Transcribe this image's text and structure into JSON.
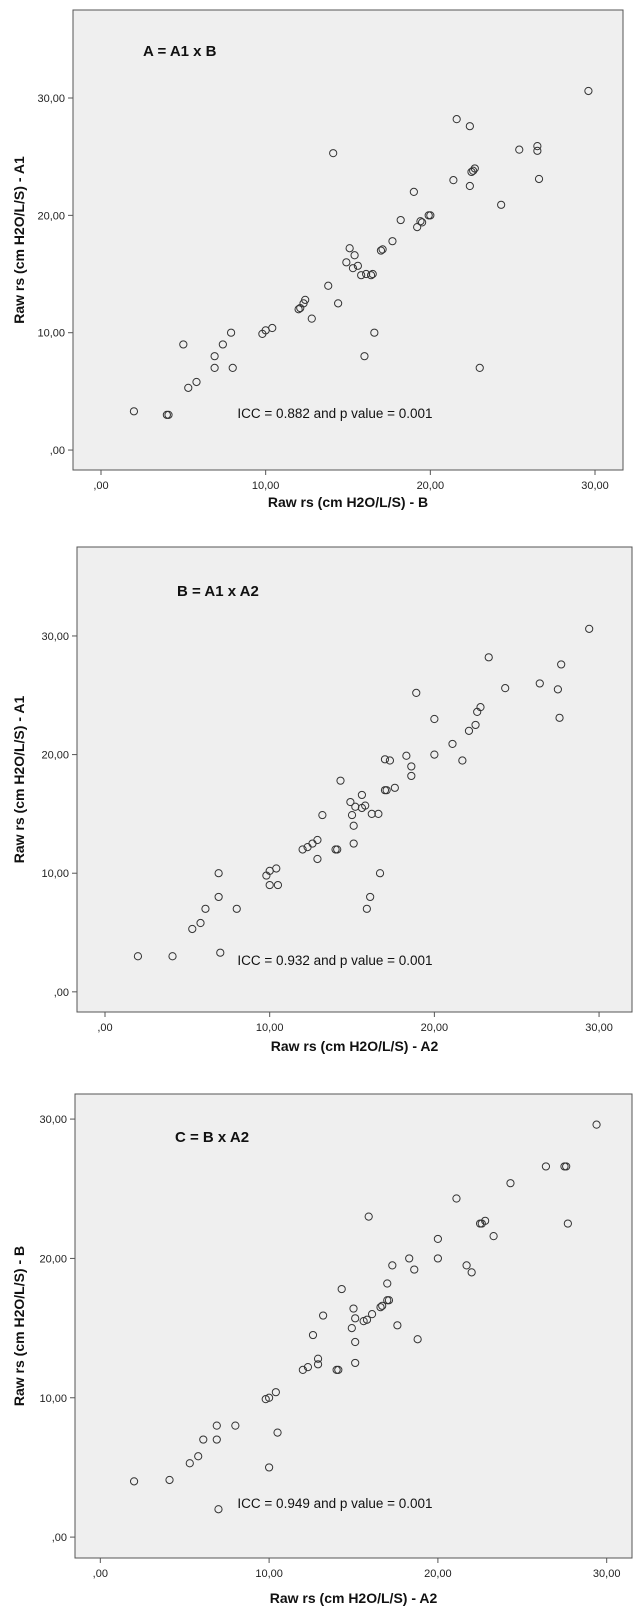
{
  "chart_data": [
    {
      "type": "scatter",
      "title": "A = A1 x B",
      "annotation": "ICC = 0.882 and p value = 0.001",
      "xlabel": "Raw rs (cm H2O/L/S) - B",
      "ylabel": "Raw rs (cm H2O/L/S) - A1",
      "xlim": [
        -1.7,
        31.7
      ],
      "ylim": [
        -1.7,
        37.5
      ],
      "xticks": [
        0,
        10,
        20,
        30
      ],
      "yticks": [
        0,
        10,
        20,
        30
      ],
      "xtick_labels": [
        ",00",
        "10,00",
        "20,00",
        "30,00"
      ],
      "ytick_labels": [
        ",00",
        "10,00",
        "20,00",
        "30,00"
      ],
      "grid": false,
      "points": [
        [
          2,
          3.3
        ],
        [
          4,
          3
        ],
        [
          4.1,
          3
        ],
        [
          5,
          9
        ],
        [
          5.3,
          5.3
        ],
        [
          5.8,
          5.8
        ],
        [
          6.9,
          7
        ],
        [
          6.9,
          8
        ],
        [
          7.4,
          9
        ],
        [
          7.9,
          10
        ],
        [
          8,
          7
        ],
        [
          9.8,
          9.9
        ],
        [
          10,
          10.2
        ],
        [
          10.4,
          10.4
        ],
        [
          12,
          12
        ],
        [
          12.1,
          12.1
        ],
        [
          12.3,
          12.5
        ],
        [
          12.4,
          12.8
        ],
        [
          12.8,
          11.2
        ],
        [
          13.8,
          14
        ],
        [
          14.1,
          25.3
        ],
        [
          14.4,
          12.5
        ],
        [
          14.9,
          16
        ],
        [
          15.1,
          17.2
        ],
        [
          15.3,
          15.5
        ],
        [
          15.4,
          16.6
        ],
        [
          15.6,
          15.7
        ],
        [
          15.8,
          14.9
        ],
        [
          16,
          8
        ],
        [
          16.1,
          15
        ],
        [
          16.4,
          14.9
        ],
        [
          16.5,
          15
        ],
        [
          16.6,
          10
        ],
        [
          17,
          17
        ],
        [
          17.1,
          17.1
        ],
        [
          17.7,
          17.8
        ],
        [
          18.2,
          19.6
        ],
        [
          19,
          22
        ],
        [
          19.2,
          19
        ],
        [
          19.4,
          19.5
        ],
        [
          19.5,
          19.4
        ],
        [
          19.9,
          20
        ],
        [
          20,
          20
        ],
        [
          21.4,
          23
        ],
        [
          21.6,
          28.2
        ],
        [
          22.4,
          27.6
        ],
        [
          22.4,
          22.5
        ],
        [
          22.5,
          23.7
        ],
        [
          22.6,
          23.8
        ],
        [
          22.7,
          24
        ],
        [
          23,
          7
        ],
        [
          24.3,
          20.9
        ],
        [
          25.4,
          25.6
        ],
        [
          26.5,
          25.9
        ],
        [
          26.5,
          25.5
        ],
        [
          26.6,
          23.1
        ],
        [
          29.6,
          30.6
        ]
      ]
    },
    {
      "type": "scatter",
      "title": "B = A1 x A2",
      "annotation": "ICC = 0.932 and p value = 0.001",
      "xlabel": "Raw rs (cm H2O/L/S) - A2",
      "ylabel": "Raw rs (cm H2O/L/S) - A1",
      "xlim": [
        -1.7,
        32.0
      ],
      "ylim": [
        -1.7,
        37.5
      ],
      "xticks": [
        0,
        10,
        20,
        30
      ],
      "yticks": [
        0,
        10,
        20,
        30
      ],
      "xtick_labels": [
        ",00",
        "10,00",
        "20,00",
        "30,00"
      ],
      "ytick_labels": [
        ",00",
        "10,00",
        "20,00",
        "30,00"
      ],
      "grid": false,
      "points": [
        [
          2,
          3
        ],
        [
          4.1,
          3
        ],
        [
          5.3,
          5.3
        ],
        [
          5.8,
          5.8
        ],
        [
          6.1,
          7
        ],
        [
          6.9,
          10
        ],
        [
          6.9,
          8
        ],
        [
          7,
          3.3
        ],
        [
          8,
          7
        ],
        [
          9.8,
          9.8
        ],
        [
          10,
          10.2
        ],
        [
          10,
          9
        ],
        [
          10.4,
          10.4
        ],
        [
          10.5,
          9
        ],
        [
          12,
          12
        ],
        [
          12.3,
          12.2
        ],
        [
          12.6,
          12.5
        ],
        [
          12.9,
          11.2
        ],
        [
          12.9,
          12.8
        ],
        [
          13.2,
          14.9
        ],
        [
          14,
          12
        ],
        [
          14.1,
          12
        ],
        [
          14.3,
          17.8
        ],
        [
          14.9,
          16
        ],
        [
          15,
          14.9
        ],
        [
          15.1,
          12.5
        ],
        [
          15.1,
          14
        ],
        [
          15.2,
          15.6
        ],
        [
          15.6,
          16.6
        ],
        [
          15.6,
          15.5
        ],
        [
          15.8,
          15.7
        ],
        [
          15.9,
          7
        ],
        [
          16.1,
          8
        ],
        [
          16.2,
          15
        ],
        [
          16.6,
          15
        ],
        [
          16.7,
          10
        ],
        [
          17,
          19.6
        ],
        [
          17,
          17
        ],
        [
          17.1,
          17
        ],
        [
          17.3,
          19.5
        ],
        [
          17.6,
          17.2
        ],
        [
          18.3,
          19.9
        ],
        [
          18.6,
          18.2
        ],
        [
          18.6,
          19
        ],
        [
          18.9,
          25.2
        ],
        [
          20,
          20
        ],
        [
          20,
          23
        ],
        [
          21.1,
          20.9
        ],
        [
          21.7,
          19.5
        ],
        [
          22.1,
          22
        ],
        [
          22.5,
          22.5
        ],
        [
          22.6,
          23.6
        ],
        [
          22.8,
          24
        ],
        [
          23.3,
          28.2
        ],
        [
          24.3,
          25.6
        ],
        [
          26.4,
          26
        ],
        [
          27.5,
          25.5
        ],
        [
          27.6,
          23.1
        ],
        [
          27.7,
          27.6
        ],
        [
          29.4,
          30.6
        ]
      ]
    },
    {
      "type": "scatter",
      "title": "C = B x A2",
      "annotation": "ICC = 0.949 and p value = 0.001",
      "xlabel": "Raw rs (cm H2O/L/S) - A2",
      "ylabel": "Raw rs (cm H2O/L/S) - B",
      "xlim": [
        -1.5,
        31.5
      ],
      "ylim": [
        -1.5,
        31.8
      ],
      "xticks": [
        0,
        10,
        20,
        30
      ],
      "yticks": [
        0,
        10,
        20,
        30
      ],
      "xtick_labels": [
        ",00",
        "10,00",
        "20,00",
        "30,00"
      ],
      "ytick_labels": [
        ",00",
        "10,00",
        "20,00",
        "30,00"
      ],
      "grid": false,
      "points": [
        [
          2,
          4
        ],
        [
          4.1,
          4.1
        ],
        [
          5.3,
          5.3
        ],
        [
          5.8,
          5.8
        ],
        [
          6.1,
          7
        ],
        [
          6.9,
          8
        ],
        [
          6.9,
          7
        ],
        [
          7,
          2
        ],
        [
          8,
          8
        ],
        [
          9.8,
          9.9
        ],
        [
          10,
          5
        ],
        [
          10,
          10
        ],
        [
          10.4,
          10.4
        ],
        [
          10.5,
          7.5
        ],
        [
          12,
          12
        ],
        [
          12.3,
          12.2
        ],
        [
          12.6,
          14.5
        ],
        [
          12.9,
          12.8
        ],
        [
          12.9,
          12.4
        ],
        [
          13.2,
          15.9
        ],
        [
          14,
          12
        ],
        [
          14.1,
          12
        ],
        [
          14.3,
          17.8
        ],
        [
          14.9,
          15
        ],
        [
          15,
          16.4
        ],
        [
          15.1,
          15.7
        ],
        [
          15.1,
          14
        ],
        [
          15.1,
          12.5
        ],
        [
          15.6,
          15.5
        ],
        [
          15.8,
          15.6
        ],
        [
          15.9,
          23
        ],
        [
          16.1,
          16
        ],
        [
          16.6,
          16.5
        ],
        [
          16.7,
          16.6
        ],
        [
          17,
          18.2
        ],
        [
          17,
          17
        ],
        [
          17.1,
          17
        ],
        [
          17.3,
          19.5
        ],
        [
          17.6,
          15.2
        ],
        [
          18.3,
          20
        ],
        [
          18.6,
          19.2
        ],
        [
          18.8,
          14.2
        ],
        [
          20,
          21.4
        ],
        [
          20,
          20
        ],
        [
          21.1,
          24.3
        ],
        [
          21.7,
          19.5
        ],
        [
          22,
          19
        ],
        [
          22.5,
          22.5
        ],
        [
          22.6,
          22.5
        ],
        [
          22.8,
          22.7
        ],
        [
          23.3,
          21.6
        ],
        [
          24.3,
          25.4
        ],
        [
          26.4,
          26.6
        ],
        [
          27.5,
          26.6
        ],
        [
          27.6,
          26.6
        ],
        [
          27.7,
          22.5
        ],
        [
          29.4,
          29.6
        ]
      ]
    }
  ]
}
